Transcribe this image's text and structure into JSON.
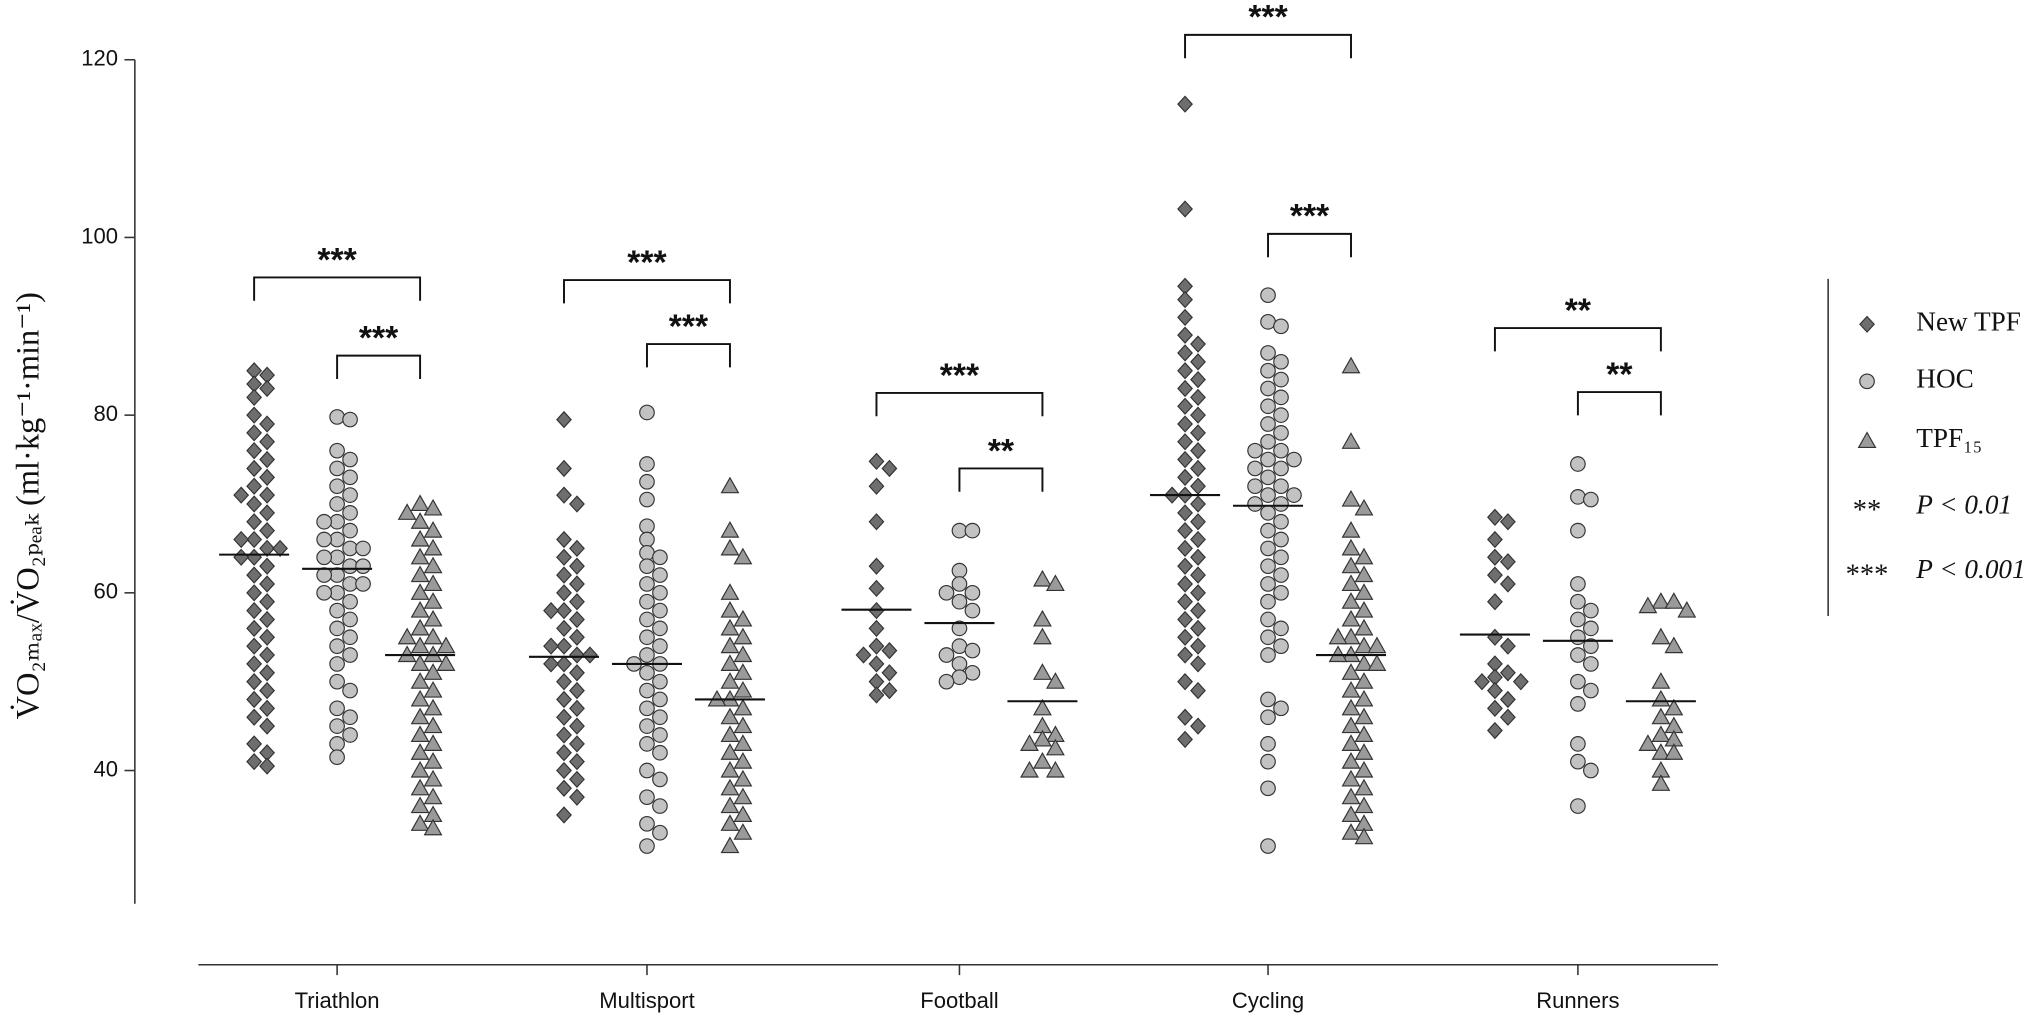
{
  "chart_data": {
    "type": "dot",
    "y_label": "V̇O₂ₘₐₓ/V̇O₂ₚₑₐₖ (ml·kg⁻¹·min⁻¹)",
    "ylim": [
      25,
      120
    ],
    "yticks": [
      40,
      60,
      80,
      100,
      120
    ],
    "categories": [
      "Triathlon",
      "Multisport",
      "Football",
      "Cycling",
      "Runners"
    ],
    "series": [
      {
        "name": "New TPF",
        "marker": "diamond",
        "color": "#6e6e6e",
        "medians": [
          64.3,
          52.8,
          58.1,
          71.0,
          55.3
        ],
        "values": [
          [
            85,
            84.5,
            83.5,
            83,
            82,
            80,
            79,
            78,
            77,
            76,
            75,
            74,
            73,
            72,
            71,
            71,
            70,
            69,
            68,
            67,
            66,
            66,
            65,
            65,
            64,
            64,
            63,
            62,
            61,
            60,
            59,
            58,
            57,
            56,
            55,
            54,
            53,
            52,
            51,
            50,
            49,
            48,
            47,
            46,
            45,
            43,
            42,
            41,
            40.5
          ],
          [
            79.5,
            74,
            71,
            70,
            66,
            65,
            64,
            63,
            62,
            61,
            60,
            59,
            58,
            58,
            57,
            56,
            55,
            54,
            54,
            53,
            53,
            52,
            52,
            51,
            50,
            49,
            48,
            47,
            46,
            45,
            44,
            43,
            42,
            41,
            40,
            39,
            38,
            37,
            35
          ],
          [
            74.8,
            74,
            72,
            68,
            63,
            60.5,
            58,
            56,
            54,
            53.5,
            53,
            52,
            51,
            50,
            49,
            48.5
          ],
          [
            115,
            103.2,
            94.5,
            93,
            91,
            89,
            88,
            87,
            86,
            85,
            84,
            83,
            82,
            81,
            80,
            79,
            78,
            77,
            76,
            75,
            74,
            73,
            72,
            71,
            71,
            70,
            69,
            68,
            67,
            66,
            65,
            64,
            63,
            62,
            61,
            60,
            59,
            58,
            57,
            56,
            55,
            54,
            53,
            52,
            50,
            49,
            46,
            45,
            43.5
          ],
          [
            68.5,
            68,
            66,
            64,
            63.5,
            62,
            61,
            59,
            55,
            54,
            52,
            51,
            50.5,
            50,
            50,
            49,
            48,
            47,
            46,
            44.5
          ]
        ]
      },
      {
        "name": "HOC",
        "marker": "circle",
        "color": "#c2c2c2",
        "medians": [
          62.7,
          52.0,
          56.6,
          69.8,
          54.6
        ],
        "values": [
          [
            79.8,
            79.5,
            76,
            75,
            74,
            73,
            72,
            71,
            70,
            69,
            68,
            68,
            67,
            66,
            66,
            65,
            65,
            64,
            64,
            63,
            63,
            62,
            62,
            61,
            61,
            60,
            60,
            59,
            58,
            57,
            56,
            55,
            54,
            53,
            52,
            50,
            49,
            47,
            46,
            45,
            44,
            43,
            41.5
          ],
          [
            80.3,
            74.5,
            72.5,
            70.5,
            67.5,
            66,
            64.5,
            64,
            63,
            62,
            61,
            60,
            59,
            58,
            57,
            56,
            55,
            54,
            53,
            52,
            52,
            51,
            50,
            49,
            48,
            47,
            46,
            45,
            44,
            43,
            42,
            40,
            39,
            37,
            36,
            34,
            33,
            31.5
          ],
          [
            67,
            67,
            62.5,
            61,
            60,
            60,
            59,
            58,
            56,
            54,
            53.5,
            53,
            52,
            51,
            50.5,
            50
          ],
          [
            93.5,
            90.5,
            90,
            87,
            86,
            85,
            84,
            83,
            82,
            81,
            80,
            79,
            78,
            77,
            76,
            76,
            75,
            75,
            74,
            74,
            73,
            72,
            72,
            71,
            71,
            70,
            70,
            69,
            68,
            67,
            66,
            65,
            64,
            63,
            62,
            61,
            60,
            59,
            57,
            56,
            55,
            54,
            53,
            48,
            47,
            46,
            43,
            41,
            38,
            31.5
          ],
          [
            74.5,
            70.8,
            70.5,
            67,
            61,
            59,
            58,
            57,
            56,
            55,
            54,
            53,
            52,
            50,
            49,
            47.5,
            43,
            41,
            40,
            36
          ]
        ]
      },
      {
        "name": "TPF₁₅",
        "marker": "triangle",
        "color": "#9a9a9a",
        "medians": [
          53.0,
          48.0,
          47.8,
          53.0,
          47.8
        ],
        "values": [
          [
            70,
            69.5,
            69,
            68,
            67,
            66,
            65,
            64,
            63,
            62,
            61,
            60,
            59,
            58,
            57,
            56,
            55,
            55,
            54,
            54,
            53,
            53,
            52,
            52,
            51,
            50,
            49,
            48,
            47,
            46,
            45,
            44,
            43,
            42,
            41,
            40,
            39,
            38,
            37,
            36,
            35,
            34,
            33.5
          ],
          [
            72,
            67,
            65,
            64,
            60,
            58,
            57,
            56,
            55,
            54,
            53,
            52,
            51,
            50,
            49,
            48,
            48,
            47,
            46,
            45,
            44,
            43,
            42,
            41,
            40,
            39,
            38,
            37,
            36,
            35,
            34,
            33,
            31.5
          ],
          [
            61.5,
            61,
            57,
            55,
            51,
            50,
            47,
            45,
            44,
            43.5,
            43,
            42.5,
            41,
            40,
            40
          ],
          [
            85.5,
            77,
            70.5,
            69.5,
            67,
            65,
            64,
            63,
            62,
            61,
            60,
            59,
            58,
            57,
            56,
            55,
            55,
            54,
            54,
            53,
            53,
            52,
            52,
            51,
            50,
            49,
            48,
            47,
            46,
            45,
            44,
            43,
            42,
            41,
            40,
            39,
            38,
            37,
            36,
            35,
            34,
            33,
            32.5
          ],
          [
            59,
            59,
            58.5,
            58,
            55,
            54,
            50,
            48,
            47,
            46,
            45,
            44,
            43.5,
            43,
            42,
            42,
            40,
            38.5
          ]
        ]
      }
    ],
    "brackets": [
      {
        "category": 0,
        "between": [
          0,
          2
        ],
        "y": 95.5,
        "label": "***"
      },
      {
        "category": 0,
        "between": [
          1,
          2
        ],
        "y": 86.7,
        "label": "***"
      },
      {
        "category": 1,
        "between": [
          0,
          2
        ],
        "y": 95.2,
        "label": "***"
      },
      {
        "category": 1,
        "between": [
          1,
          2
        ],
        "y": 88.0,
        "label": "***"
      },
      {
        "category": 2,
        "between": [
          0,
          2
        ],
        "y": 82.5,
        "label": "***"
      },
      {
        "category": 2,
        "between": [
          1,
          2
        ],
        "y": 74.0,
        "label": "**"
      },
      {
        "category": 3,
        "between": [
          0,
          2
        ],
        "y": 122.8,
        "label": "***"
      },
      {
        "category": 3,
        "between": [
          1,
          2
        ],
        "y": 100.4,
        "label": "***"
      },
      {
        "category": 4,
        "between": [
          0,
          2
        ],
        "y": 89.8,
        "label": "**"
      },
      {
        "category": 4,
        "between": [
          1,
          2
        ],
        "y": 82.6,
        "label": "**"
      }
    ],
    "significance_legend": [
      {
        "symbol": "**",
        "label": "P < 0.01"
      },
      {
        "symbol": "***",
        "label": "P < 0.001"
      }
    ]
  }
}
